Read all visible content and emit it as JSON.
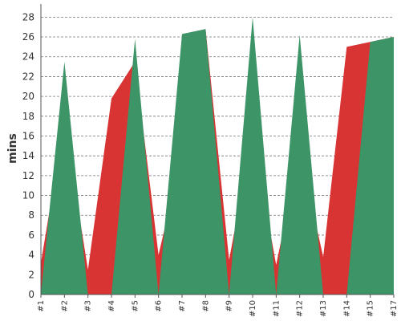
{
  "chart_data": {
    "type": "area",
    "ylabel": "mins",
    "ylim": [
      0,
      29
    ],
    "yticks": [
      0,
      2,
      4,
      6,
      8,
      10,
      12,
      14,
      16,
      18,
      20,
      22,
      24,
      26,
      28
    ],
    "grid": {
      "horizontal": true,
      "style": "dashed"
    },
    "categories": [
      "#1",
      "#2",
      "#3",
      "#4",
      "#5",
      "#6",
      "#7",
      "#8",
      "#9",
      "#10",
      "#11",
      "#12",
      "#13",
      "#14",
      "#15",
      "#17"
    ],
    "x": [
      1,
      2,
      3,
      4,
      5,
      6,
      7,
      8,
      9,
      10,
      11,
      12,
      13,
      14,
      15,
      16
    ],
    "red_upper": [
      3.2,
      17.5,
      2.5,
      19.8,
      23.5,
      4.0,
      14.2,
      26.8,
      3.5,
      16.2,
      3.0,
      14.5,
      3.8,
      25.0,
      25.5,
      26.0
    ],
    "green_upper": [
      0,
      23.5,
      0,
      0,
      25.8,
      0,
      26.3,
      26.8,
      0,
      28.0,
      0,
      26.2,
      0,
      0,
      25.5,
      26.0
    ],
    "series": [
      {
        "color": "#d93434"
      },
      {
        "color": "#3d9467"
      }
    ]
  }
}
